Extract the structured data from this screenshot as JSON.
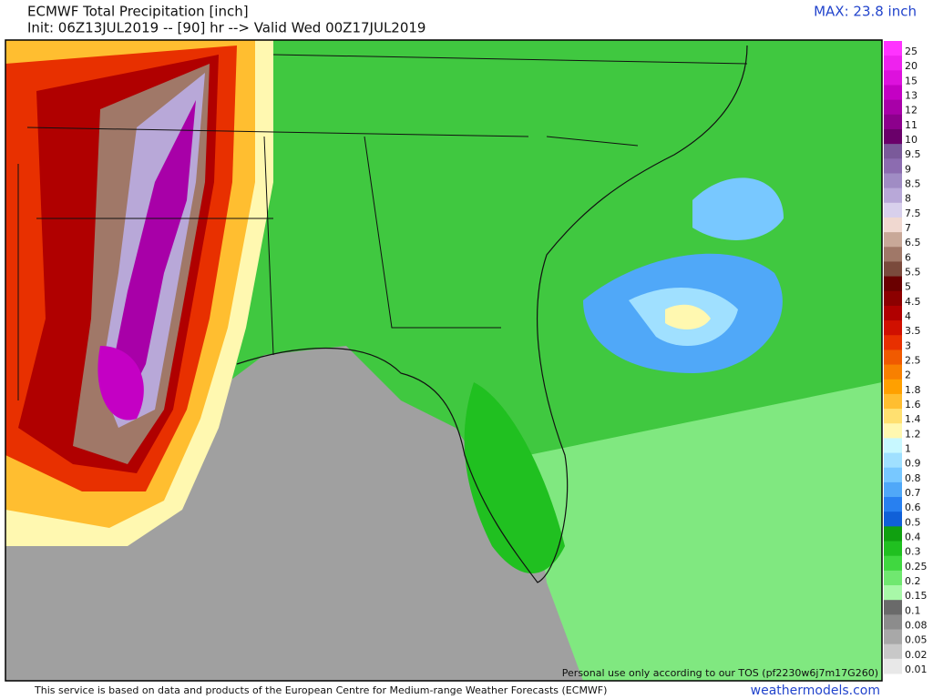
{
  "header": {
    "title": "ECMWF Total Precipitation [inch]",
    "subtitle": "Init: 06Z13JUL2019 -- [90] hr --> Valid Wed 00Z17JUL2019",
    "max": "MAX: 23.8 inch"
  },
  "legend": [
    {
      "label": "25",
      "color": "#ff33ff"
    },
    {
      "label": "20",
      "color": "#ee22ee"
    },
    {
      "label": "15",
      "color": "#dd11dd"
    },
    {
      "label": "13",
      "color": "#c400c4"
    },
    {
      "label": "12",
      "color": "#a800a8"
    },
    {
      "label": "11",
      "color": "#8c008c"
    },
    {
      "label": "10",
      "color": "#6a006a"
    },
    {
      "label": "9.5",
      "color": "#7a5a9a"
    },
    {
      "label": "9",
      "color": "#8c6cb0"
    },
    {
      "label": "8.5",
      "color": "#a08cc4"
    },
    {
      "label": "8",
      "color": "#b8a8d8"
    },
    {
      "label": "7.5",
      "color": "#d8d0ec"
    },
    {
      "label": "7",
      "color": "#f0d8d0"
    },
    {
      "label": "6.5",
      "color": "#c8a898"
    },
    {
      "label": "6",
      "color": "#a07868"
    },
    {
      "label": "5.5",
      "color": "#7a4a3c"
    },
    {
      "label": "5",
      "color": "#6a0000"
    },
    {
      "label": "4.5",
      "color": "#8c0000"
    },
    {
      "label": "4",
      "color": "#b00000"
    },
    {
      "label": "3.5",
      "color": "#d01000"
    },
    {
      "label": "3",
      "color": "#e83000"
    },
    {
      "label": "2.5",
      "color": "#f05a00"
    },
    {
      "label": "2",
      "color": "#f88000"
    },
    {
      "label": "1.8",
      "color": "#ffa000"
    },
    {
      "label": "1.6",
      "color": "#ffbe30"
    },
    {
      "label": "1.4",
      "color": "#ffe070"
    },
    {
      "label": "1.2",
      "color": "#fff8b0"
    },
    {
      "label": "1",
      "color": "#c8f8ff"
    },
    {
      "label": "0.9",
      "color": "#a0e0ff"
    },
    {
      "label": "0.8",
      "color": "#78c8ff"
    },
    {
      "label": "0.7",
      "color": "#50a8f8"
    },
    {
      "label": "0.6",
      "color": "#2880f0"
    },
    {
      "label": "0.5",
      "color": "#1060d8"
    },
    {
      "label": "0.4",
      "color": "#10a010"
    },
    {
      "label": "0.3",
      "color": "#20c020"
    },
    {
      "label": "0.25",
      "color": "#40d840"
    },
    {
      "label": "0.2",
      "color": "#70e870"
    },
    {
      "label": "0.15",
      "color": "#a8f8a8"
    },
    {
      "label": "0.1",
      "color": "#6a6a6a"
    },
    {
      "label": "0.08",
      "color": "#8c8c8c"
    },
    {
      "label": "0.05",
      "color": "#a8a8a8"
    },
    {
      "label": "0.02",
      "color": "#c8c8c8"
    },
    {
      "label": "0.01",
      "color": "#e8e8e8"
    }
  ],
  "watermark": "Personal use only according to our TOS (pf2230w6j7m17G260)",
  "footer": {
    "notice": "This service is based on data and products of the European Centre for Medium-range Weather Forecasts (ECMWF)",
    "site": "weathermodels.com"
  }
}
